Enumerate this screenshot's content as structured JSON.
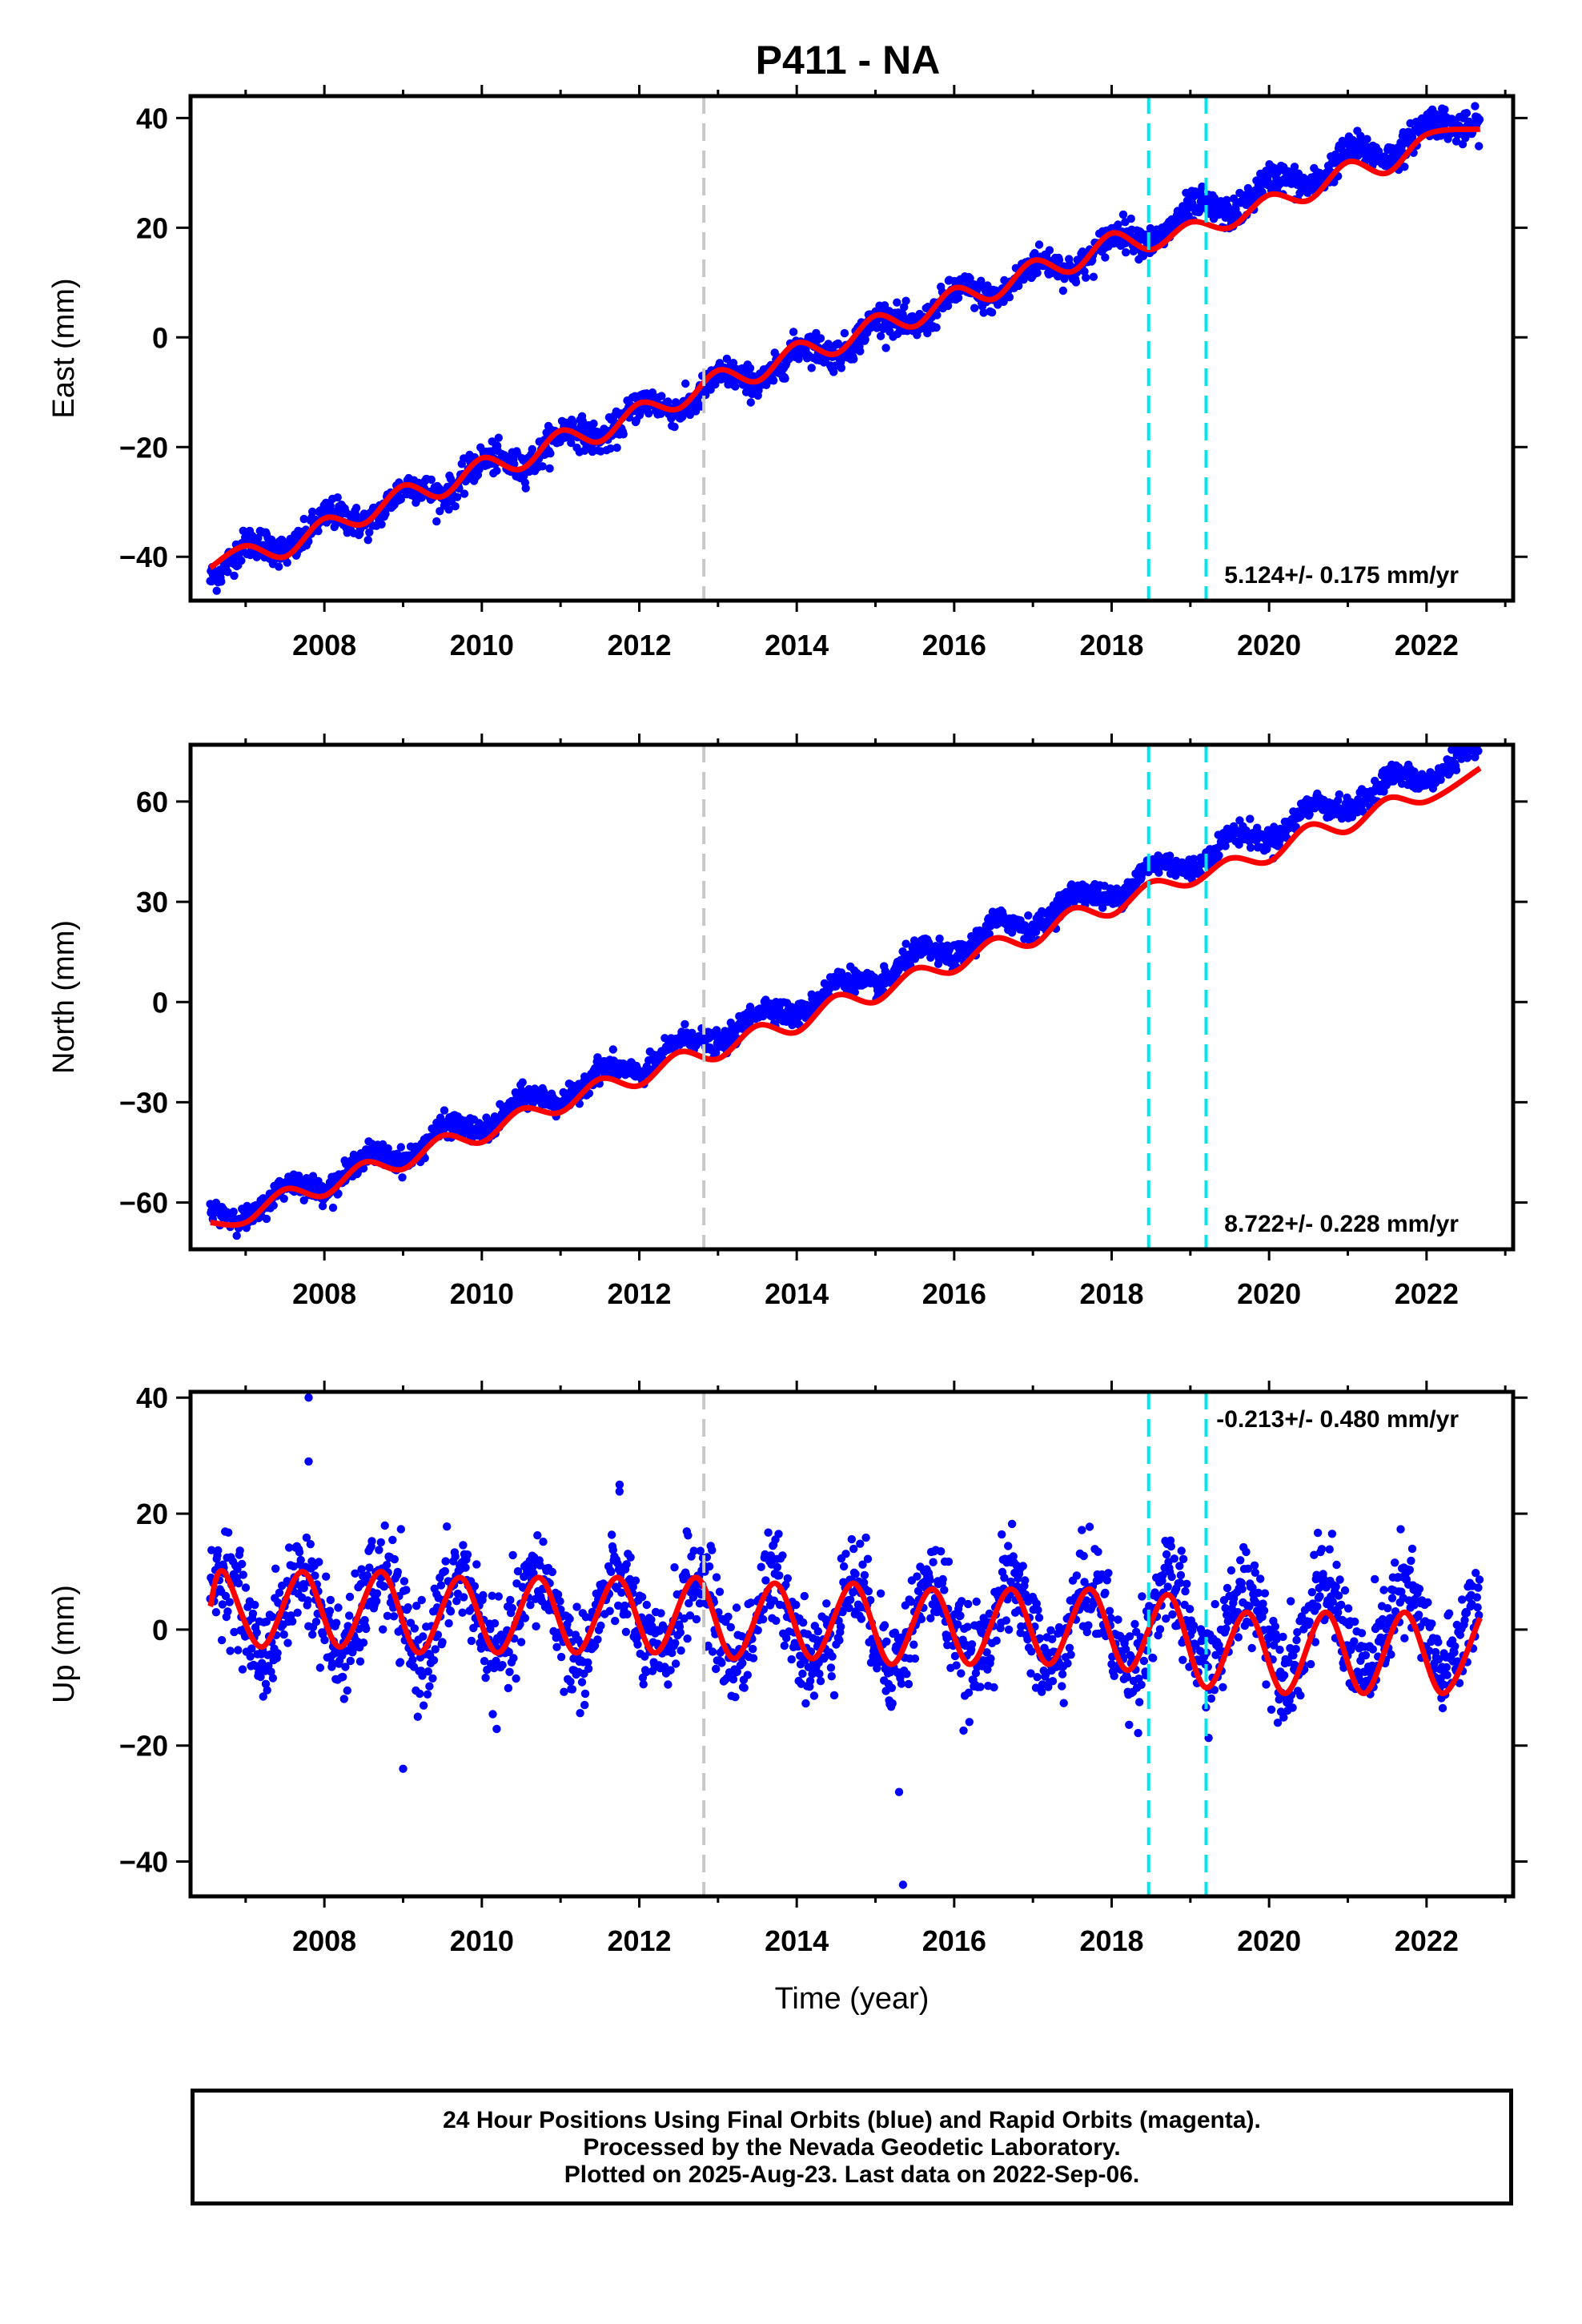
{
  "chart_data": {
    "title": "P411 - NA",
    "type": "scatter",
    "xlim": [
      2006.3,
      2023.1
    ],
    "x_ticks": [
      "2008",
      "2010",
      "2012",
      "2014",
      "2016",
      "2018",
      "2020",
      "2022"
    ],
    "xlabel": "Time (year)",
    "data_span": [
      2006.55,
      2022.68
    ],
    "vertical_lines": [
      {
        "x": 2012.82,
        "color": "#c8c8c8",
        "style": "dashed"
      },
      {
        "x": 2018.47,
        "color": "#00e5ee",
        "style": "dashed"
      },
      {
        "x": 2019.2,
        "color": "#00e5ee",
        "style": "dashed"
      }
    ],
    "colors": {
      "observations": "#0000ff",
      "model": "#ff0000"
    },
    "grid": false,
    "panels": [
      {
        "name": "east",
        "ylabel": "East (mm)",
        "ylim": [
          -48,
          44
        ],
        "y_ticks": [
          "40",
          "20",
          "0",
          "−20",
          "−40"
        ],
        "rate_text": "5.124+/- 0.175 mm/yr",
        "rate_position": "bottom-right",
        "model": {
          "offset": -42,
          "rate": 5.124,
          "seasonal_amplitude": 2.0,
          "phase_peak": 0.05,
          "noise_sd": 1.4
        },
        "model_points": [
          [
            2006.55,
            -42
          ],
          [
            2007.0,
            -38
          ],
          [
            2007.5,
            -40
          ],
          [
            2008.0,
            -33
          ],
          [
            2008.5,
            -34
          ],
          [
            2009.0,
            -27
          ],
          [
            2009.5,
            -29
          ],
          [
            2010.0,
            -22
          ],
          [
            2010.5,
            -24
          ],
          [
            2011.0,
            -17
          ],
          [
            2011.5,
            -19
          ],
          [
            2012.0,
            -12
          ],
          [
            2012.5,
            -13
          ],
          [
            2013.0,
            -6
          ],
          [
            2013.5,
            -8
          ],
          [
            2014.0,
            -1
          ],
          [
            2014.5,
            -3
          ],
          [
            2015.0,
            4
          ],
          [
            2015.5,
            2
          ],
          [
            2016.0,
            9
          ],
          [
            2016.5,
            7
          ],
          [
            2017.0,
            14
          ],
          [
            2017.5,
            12
          ],
          [
            2018.0,
            19
          ],
          [
            2018.5,
            16
          ],
          [
            2019.0,
            21
          ],
          [
            2019.5,
            20
          ],
          [
            2020.0,
            26
          ],
          [
            2020.5,
            25
          ],
          [
            2021.0,
            32
          ],
          [
            2021.5,
            30
          ],
          [
            2022.0,
            37
          ],
          [
            2022.68,
            38
          ]
        ]
      },
      {
        "name": "north",
        "ylabel": "North (mm)",
        "ylim": [
          -74,
          77
        ],
        "y_ticks": [
          "60",
          "30",
          "0",
          "−30",
          "−60"
        ],
        "rate_text": "8.722+/- 0.228 mm/yr",
        "rate_position": "bottom-right",
        "model": {
          "offset": -66,
          "rate": 8.722,
          "seasonal_amplitude": 3.0,
          "phase_peak": 0.55,
          "noise_sd": 1.7
        },
        "model_points": [
          [
            2006.55,
            -66
          ],
          [
            2007.0,
            -66
          ],
          [
            2007.5,
            -56
          ],
          [
            2008.0,
            -58
          ],
          [
            2008.5,
            -48
          ],
          [
            2009.0,
            -50
          ],
          [
            2009.5,
            -40
          ],
          [
            2010.0,
            -42
          ],
          [
            2010.5,
            -32
          ],
          [
            2011.0,
            -33
          ],
          [
            2011.5,
            -23
          ],
          [
            2012.0,
            -25
          ],
          [
            2012.5,
            -15
          ],
          [
            2013.0,
            -17
          ],
          [
            2013.5,
            -7
          ],
          [
            2014.0,
            -9
          ],
          [
            2014.5,
            2
          ],
          [
            2015.0,
            0
          ],
          [
            2015.5,
            10
          ],
          [
            2016.0,
            9
          ],
          [
            2016.5,
            19
          ],
          [
            2017.0,
            17
          ],
          [
            2017.5,
            28
          ],
          [
            2018.0,
            26
          ],
          [
            2018.5,
            36
          ],
          [
            2019.0,
            35
          ],
          [
            2019.5,
            43
          ],
          [
            2020.0,
            42
          ],
          [
            2020.5,
            53
          ],
          [
            2021.0,
            51
          ],
          [
            2021.5,
            61
          ],
          [
            2022.0,
            60
          ],
          [
            2022.68,
            70
          ]
        ]
      },
      {
        "name": "up",
        "ylabel": "Up (mm)",
        "ylim": [
          -46,
          41
        ],
        "y_ticks": [
          "40",
          "20",
          "0",
          "−20",
          "−40"
        ],
        "rate_text": "-0.213+/- 0.480 mm/yr",
        "rate_position": "top-right",
        "model": {
          "offset": 3.0,
          "rate": -0.213,
          "seasonal_amplitude": 7.0,
          "phase_peak": 0.72,
          "noise_sd": 4.2
        },
        "model_points": [
          [
            2006.55,
            4
          ],
          [
            2006.72,
            10
          ],
          [
            2007.2,
            -3
          ],
          [
            2007.72,
            10
          ],
          [
            2008.2,
            -3
          ],
          [
            2008.72,
            10
          ],
          [
            2009.2,
            -4
          ],
          [
            2009.72,
            9
          ],
          [
            2010.2,
            -4
          ],
          [
            2010.72,
            9
          ],
          [
            2011.2,
            -4
          ],
          [
            2011.72,
            9
          ],
          [
            2012.2,
            -4
          ],
          [
            2012.72,
            9
          ],
          [
            2013.2,
            -5
          ],
          [
            2013.72,
            8
          ],
          [
            2014.2,
            -5
          ],
          [
            2014.72,
            8
          ],
          [
            2015.2,
            -6
          ],
          [
            2015.72,
            7
          ],
          [
            2016.2,
            -6
          ],
          [
            2016.72,
            7
          ],
          [
            2017.2,
            -6
          ],
          [
            2017.72,
            7
          ],
          [
            2018.2,
            -7
          ],
          [
            2018.72,
            6
          ],
          [
            2019.2,
            -10
          ],
          [
            2019.72,
            3
          ],
          [
            2020.2,
            -11
          ],
          [
            2020.72,
            3
          ],
          [
            2021.2,
            -11
          ],
          [
            2021.72,
            3
          ],
          [
            2022.2,
            -11
          ],
          [
            2022.68,
            2
          ]
        ],
        "outliers": [
          [
            2007.8,
            40
          ],
          [
            2007.8,
            29
          ],
          [
            2011.75,
            25
          ],
          [
            2015.3,
            -28
          ],
          [
            2015.35,
            -44
          ],
          [
            2009.0,
            -24
          ]
        ]
      }
    ]
  },
  "footer": {
    "line1": "24 Hour Positions Using Final Orbits (blue) and Rapid Orbits (magenta).",
    "line2": "Processed by the Nevada Geodetic Laboratory.",
    "line3": "Plotted on 2025-Aug-23. Last data on 2022-Sep-06."
  }
}
